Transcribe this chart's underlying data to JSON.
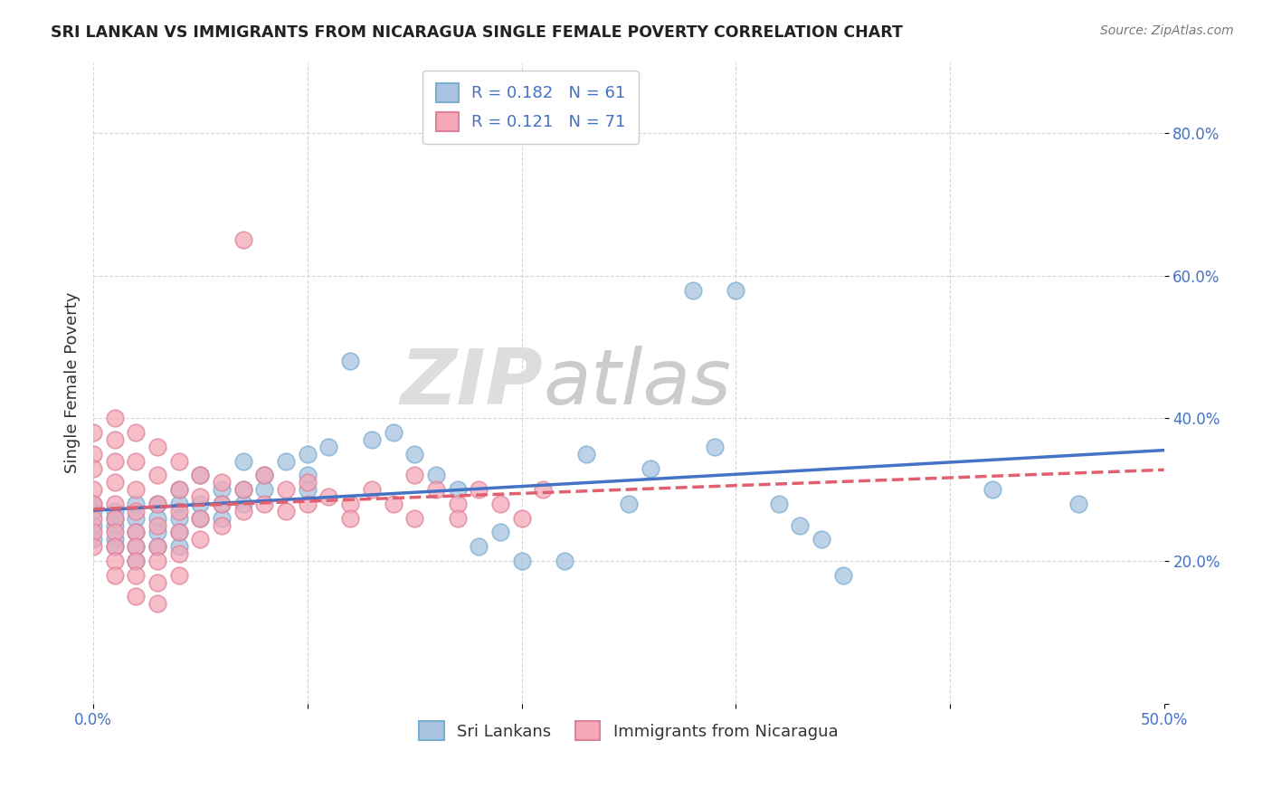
{
  "title": "SRI LANKAN VS IMMIGRANTS FROM NICARAGUA SINGLE FEMALE POVERTY CORRELATION CHART",
  "source": "Source: ZipAtlas.com",
  "ylabel": "Single Female Poverty",
  "xlim": [
    0.0,
    0.5
  ],
  "ylim": [
    0.0,
    0.9
  ],
  "sri_lanka_color": "#a8c4e0",
  "sri_lanka_edge_color": "#7aaed0",
  "nicaragua_color": "#f4a8b8",
  "nicaragua_edge_color": "#e08098",
  "sri_lanka_line_color": "#4472c4",
  "nicaragua_line_color": "#e06070",
  "R_sri": 0.182,
  "N_sri": 61,
  "R_nic": 0.121,
  "N_nic": 71,
  "legend_sri": "Sri Lankans",
  "legend_nic": "Immigrants from Nicaragua",
  "sri_lanka_points": [
    [
      0.0,
      0.27
    ],
    [
      0.0,
      0.25
    ],
    [
      0.0,
      0.23
    ],
    [
      0.0,
      0.28
    ],
    [
      0.01,
      0.27
    ],
    [
      0.01,
      0.25
    ],
    [
      0.01,
      0.23
    ],
    [
      0.01,
      0.22
    ],
    [
      0.01,
      0.26
    ],
    [
      0.02,
      0.28
    ],
    [
      0.02,
      0.26
    ],
    [
      0.02,
      0.24
    ],
    [
      0.02,
      0.22
    ],
    [
      0.02,
      0.2
    ],
    [
      0.03,
      0.28
    ],
    [
      0.03,
      0.26
    ],
    [
      0.03,
      0.24
    ],
    [
      0.03,
      0.22
    ],
    [
      0.04,
      0.3
    ],
    [
      0.04,
      0.28
    ],
    [
      0.04,
      0.26
    ],
    [
      0.04,
      0.24
    ],
    [
      0.04,
      0.22
    ],
    [
      0.05,
      0.32
    ],
    [
      0.05,
      0.28
    ],
    [
      0.05,
      0.26
    ],
    [
      0.06,
      0.3
    ],
    [
      0.06,
      0.28
    ],
    [
      0.06,
      0.26
    ],
    [
      0.07,
      0.34
    ],
    [
      0.07,
      0.3
    ],
    [
      0.07,
      0.28
    ],
    [
      0.08,
      0.32
    ],
    [
      0.08,
      0.3
    ],
    [
      0.09,
      0.34
    ],
    [
      0.1,
      0.35
    ],
    [
      0.1,
      0.32
    ],
    [
      0.1,
      0.3
    ],
    [
      0.11,
      0.36
    ],
    [
      0.12,
      0.48
    ],
    [
      0.13,
      0.37
    ],
    [
      0.14,
      0.38
    ],
    [
      0.15,
      0.35
    ],
    [
      0.16,
      0.32
    ],
    [
      0.17,
      0.3
    ],
    [
      0.18,
      0.22
    ],
    [
      0.19,
      0.24
    ],
    [
      0.2,
      0.2
    ],
    [
      0.22,
      0.2
    ],
    [
      0.23,
      0.35
    ],
    [
      0.25,
      0.28
    ],
    [
      0.26,
      0.33
    ],
    [
      0.28,
      0.58
    ],
    [
      0.29,
      0.36
    ],
    [
      0.3,
      0.58
    ],
    [
      0.32,
      0.28
    ],
    [
      0.33,
      0.25
    ],
    [
      0.34,
      0.23
    ],
    [
      0.35,
      0.18
    ],
    [
      0.42,
      0.3
    ],
    [
      0.46,
      0.28
    ]
  ],
  "nicaragua_points": [
    [
      0.0,
      0.38
    ],
    [
      0.0,
      0.35
    ],
    [
      0.0,
      0.33
    ],
    [
      0.0,
      0.3
    ],
    [
      0.0,
      0.28
    ],
    [
      0.0,
      0.26
    ],
    [
      0.0,
      0.24
    ],
    [
      0.0,
      0.22
    ],
    [
      0.01,
      0.4
    ],
    [
      0.01,
      0.37
    ],
    [
      0.01,
      0.34
    ],
    [
      0.01,
      0.31
    ],
    [
      0.01,
      0.28
    ],
    [
      0.01,
      0.26
    ],
    [
      0.01,
      0.24
    ],
    [
      0.01,
      0.22
    ],
    [
      0.01,
      0.2
    ],
    [
      0.01,
      0.18
    ],
    [
      0.02,
      0.38
    ],
    [
      0.02,
      0.34
    ],
    [
      0.02,
      0.3
    ],
    [
      0.02,
      0.27
    ],
    [
      0.02,
      0.24
    ],
    [
      0.02,
      0.22
    ],
    [
      0.02,
      0.2
    ],
    [
      0.02,
      0.18
    ],
    [
      0.02,
      0.15
    ],
    [
      0.03,
      0.36
    ],
    [
      0.03,
      0.32
    ],
    [
      0.03,
      0.28
    ],
    [
      0.03,
      0.25
    ],
    [
      0.03,
      0.22
    ],
    [
      0.03,
      0.2
    ],
    [
      0.03,
      0.17
    ],
    [
      0.03,
      0.14
    ],
    [
      0.04,
      0.34
    ],
    [
      0.04,
      0.3
    ],
    [
      0.04,
      0.27
    ],
    [
      0.04,
      0.24
    ],
    [
      0.04,
      0.21
    ],
    [
      0.04,
      0.18
    ],
    [
      0.05,
      0.32
    ],
    [
      0.05,
      0.29
    ],
    [
      0.05,
      0.26
    ],
    [
      0.05,
      0.23
    ],
    [
      0.06,
      0.31
    ],
    [
      0.06,
      0.28
    ],
    [
      0.06,
      0.25
    ],
    [
      0.07,
      0.65
    ],
    [
      0.07,
      0.3
    ],
    [
      0.07,
      0.27
    ],
    [
      0.08,
      0.32
    ],
    [
      0.08,
      0.28
    ],
    [
      0.09,
      0.3
    ],
    [
      0.09,
      0.27
    ],
    [
      0.1,
      0.31
    ],
    [
      0.1,
      0.28
    ],
    [
      0.11,
      0.29
    ],
    [
      0.12,
      0.28
    ],
    [
      0.12,
      0.26
    ],
    [
      0.13,
      0.3
    ],
    [
      0.14,
      0.28
    ],
    [
      0.15,
      0.32
    ],
    [
      0.15,
      0.26
    ],
    [
      0.16,
      0.3
    ],
    [
      0.17,
      0.28
    ],
    [
      0.17,
      0.26
    ],
    [
      0.18,
      0.3
    ],
    [
      0.19,
      0.28
    ],
    [
      0.2,
      0.26
    ],
    [
      0.21,
      0.3
    ]
  ]
}
